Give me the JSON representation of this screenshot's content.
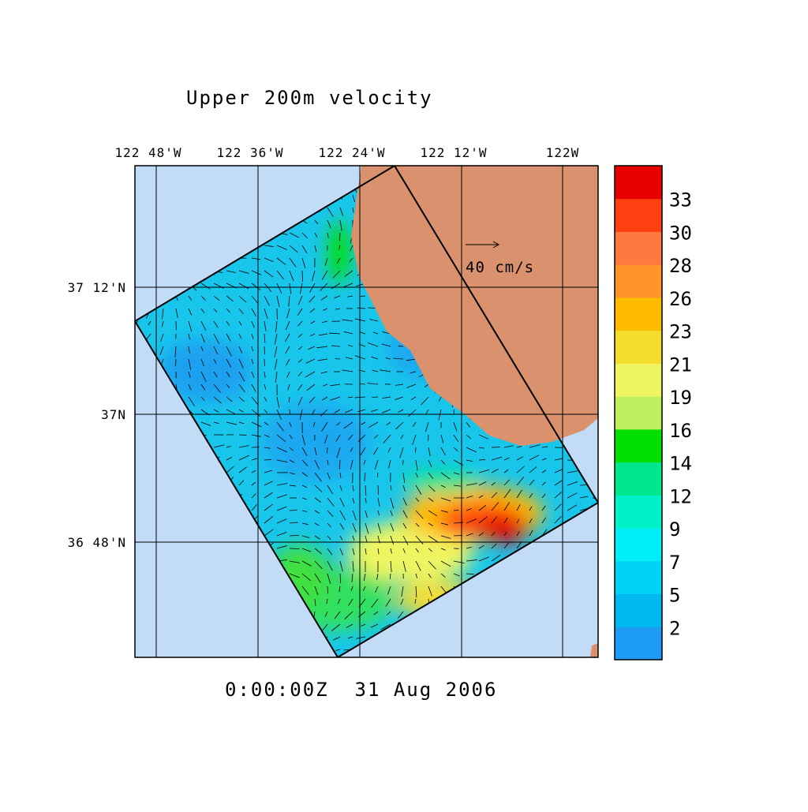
{
  "title": "Upper 200m velocity",
  "longitude_labels": [
    "122 48'W",
    "122 36'W",
    "122 24'W",
    "122 12'W",
    "122W"
  ],
  "latitude_labels": [
    "37 12'N",
    "37N",
    "36 48'N"
  ],
  "reference_arrow": "40 cm/s",
  "timestamp": "0:00:00Z  31 Aug 2006",
  "colorbar": {
    "levels": [
      2,
      5,
      7,
      9,
      12,
      14,
      16,
      19,
      21,
      23,
      26,
      28,
      30,
      33
    ],
    "colors": [
      "#1e9bf5",
      "#00b8f0",
      "#00d2f5",
      "#00eef5",
      "#00f0c8",
      "#00e68c",
      "#00e000",
      "#c0f060",
      "#eef560",
      "#f5dd30",
      "#ffbb00",
      "#ff9428",
      "#ff7840",
      "#ff4010",
      "#e60000"
    ]
  }
}
